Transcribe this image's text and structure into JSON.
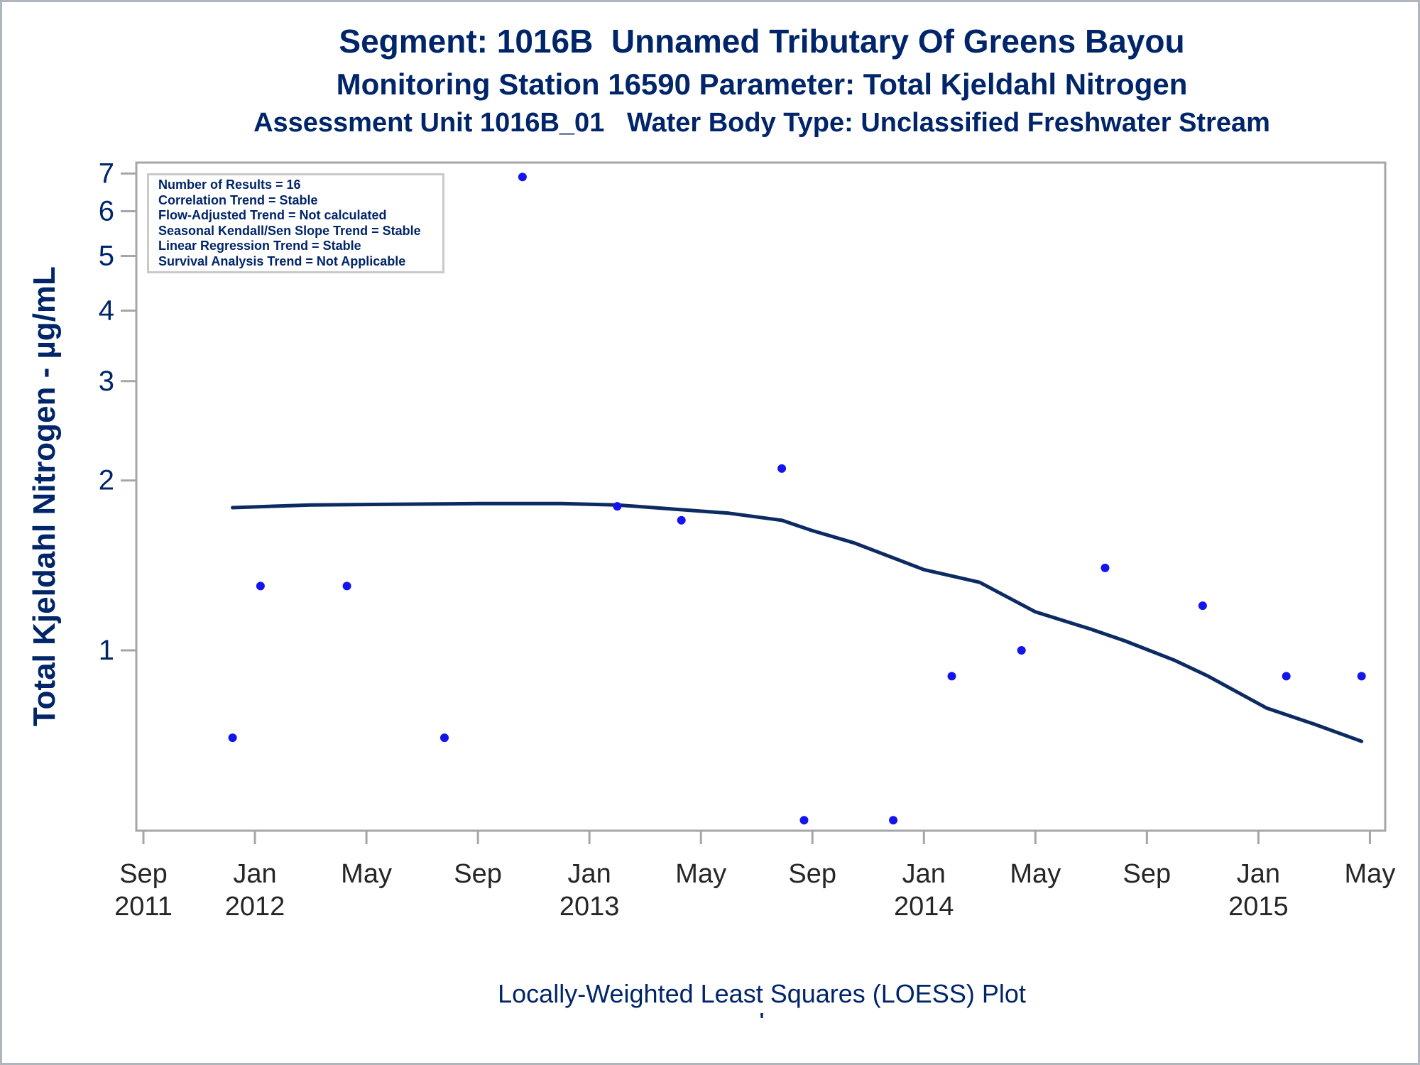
{
  "chart_data": {
    "type": "scatter",
    "titles": [
      "Segment: 1016B  Unnamed Tributary Of Greens Bayou",
      "Monitoring Station 16590 Parameter: Total Kjeldahl Nitrogen",
      "Assessment Unit 1016B_01   Water Body Type: Unclassified Freshwater Stream"
    ],
    "ylabel": "Total Kjeldahl Nitrogen -  µg/mL",
    "xlabel": "",
    "footnote": "Locally-Weighted Least Squares (LOESS) Plot",
    "footnote_mark": "'",
    "y_scale": "log",
    "ylim": [
      0.48,
      7.3
    ],
    "y_ticks": [
      1,
      2,
      3,
      4,
      5,
      6,
      7
    ],
    "x_unit": "months since Sep 2011",
    "xlim": [
      -0.25,
      44.55
    ],
    "x_ticks": [
      {
        "m": 0,
        "label": "Sep",
        "year": "2011"
      },
      {
        "m": 4,
        "label": "Jan",
        "year": "2012"
      },
      {
        "m": 8,
        "label": "May"
      },
      {
        "m": 12,
        "label": "Sep"
      },
      {
        "m": 16,
        "label": "Jan",
        "year": "2013"
      },
      {
        "m": 20,
        "label": "May"
      },
      {
        "m": 24,
        "label": "Sep"
      },
      {
        "m": 28,
        "label": "Jan",
        "year": "2014"
      },
      {
        "m": 32,
        "label": "May"
      },
      {
        "m": 36,
        "label": "Sep"
      },
      {
        "m": 40,
        "label": "Jan",
        "year": "2015"
      },
      {
        "m": 44,
        "label": "May"
      }
    ],
    "points": [
      {
        "m": 3.2,
        "date": "Dec 2011",
        "value": 0.7
      },
      {
        "m": 4.2,
        "date": "Jan 2012",
        "value": 1.3
      },
      {
        "m": 7.3,
        "date": "Apr 2012",
        "value": 1.3
      },
      {
        "m": 10.8,
        "date": "Aug 2012",
        "value": 0.7
      },
      {
        "m": 13.6,
        "date": "Oct 2012",
        "value": 6.9
      },
      {
        "m": 17.0,
        "date": "Feb 2013",
        "value": 1.8
      },
      {
        "m": 19.3,
        "date": "Apr 2013",
        "value": 1.7
      },
      {
        "m": 22.9,
        "date": "Aug 2013",
        "value": 2.1
      },
      {
        "m": 23.7,
        "date": "Aug 2013",
        "value": 0.5
      },
      {
        "m": 26.9,
        "date": "Nov 2013",
        "value": 0.5
      },
      {
        "m": 29.0,
        "date": "Feb 2014",
        "value": 0.9
      },
      {
        "m": 31.5,
        "date": "Apr 2014",
        "value": 1.0
      },
      {
        "m": 34.5,
        "date": "Jul 2014",
        "value": 1.4
      },
      {
        "m": 38.0,
        "date": "Nov 2014",
        "value": 1.2
      },
      {
        "m": 41.0,
        "date": "Feb 2015",
        "value": 0.9
      },
      {
        "m": 43.7,
        "date": "May 2015",
        "value": 0.9
      }
    ],
    "loess": [
      [
        3.2,
        1.79
      ],
      [
        6,
        1.81
      ],
      [
        9,
        1.815
      ],
      [
        12,
        1.82
      ],
      [
        15,
        1.82
      ],
      [
        17,
        1.81
      ],
      [
        19,
        1.78
      ],
      [
        21,
        1.75
      ],
      [
        22.9,
        1.7
      ],
      [
        24,
        1.63
      ],
      [
        25.5,
        1.55
      ],
      [
        28,
        1.39
      ],
      [
        30,
        1.32
      ],
      [
        32,
        1.17
      ],
      [
        34,
        1.09
      ],
      [
        35.2,
        1.04
      ],
      [
        37,
        0.96
      ],
      [
        38.2,
        0.9
      ],
      [
        40.3,
        0.79
      ],
      [
        42,
        0.74
      ],
      [
        43.7,
        0.69
      ]
    ],
    "annotation_box": {
      "lines": [
        "Number of Results = 16",
        "Correlation Trend = Stable",
        "Flow-Adjusted Trend = Not calculated",
        "Seasonal Kendall/Sen Slope Trend = Stable",
        "Linear Regression Trend = Stable",
        "Survival Analysis Trend = Not Applicable"
      ]
    },
    "legend": "none",
    "grid": "off",
    "colors": {
      "title_text": "#002569",
      "dot": "#1414ee",
      "loess_line": "#0d2b63",
      "frame": "#a6a6a6",
      "x_tick_text": "#262626",
      "y_tick_text": "#002569",
      "inset_border": "#c9c9c9"
    }
  }
}
